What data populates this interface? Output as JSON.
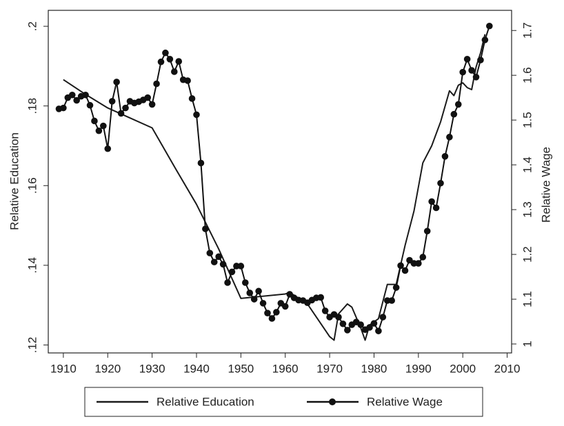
{
  "chart_data": {
    "type": "line",
    "xlabel": null,
    "ylabel": "Relative Education",
    "y2label": "Relative Wage",
    "xlim": [
      1906.6,
      2011
    ],
    "xticks": [
      1910,
      1920,
      1930,
      1940,
      1950,
      1960,
      1970,
      1980,
      1990,
      2000,
      2010
    ],
    "ylim": [
      0.118,
      0.204
    ],
    "yticks": [
      {
        "value": 0.12,
        "label": ".12"
      },
      {
        "value": 0.14,
        "label": ".14"
      },
      {
        "value": 0.16,
        "label": ".16"
      },
      {
        "value": 0.18,
        "label": ".18"
      },
      {
        "value": 0.2,
        "label": ".2"
      }
    ],
    "y2lim": [
      0.98,
      1.745
    ],
    "y2ticks": [
      1,
      1.1,
      1.2,
      1.3,
      1.4,
      1.5,
      1.6,
      1.7
    ],
    "legend": "bottom",
    "series": [
      {
        "name": "Relative Education",
        "color": "#1a1a1a",
        "markers": false,
        "x": [
          1910,
          1915,
          1920,
          1925,
          1930,
          1935,
          1940,
          1945,
          1950,
          1960,
          1961,
          1965,
          1970,
          1971,
          1972,
          1974,
          1975,
          1977,
          1978,
          1979,
          1981,
          1983,
          1985,
          1987,
          1989,
          1991,
          1993,
          1995,
          1997,
          1998,
          1999,
          2000,
          2001,
          2002,
          2003,
          2004,
          2005
        ],
        "values": [
          0.1866,
          0.1829,
          0.1795,
          0.177,
          0.1745,
          0.1648,
          0.1553,
          0.1441,
          0.1317,
          0.1328,
          0.1332,
          0.1303,
          0.1221,
          0.1212,
          0.1278,
          0.1303,
          0.1295,
          0.1243,
          0.1212,
          0.125,
          0.1266,
          0.1352,
          0.1352,
          0.145,
          0.1536,
          0.1657,
          0.17,
          0.176,
          0.1838,
          0.1826,
          0.1852,
          0.1858,
          0.1846,
          0.1841,
          0.1898,
          0.1933,
          0.198
        ]
      },
      {
        "name": "Relative Wage",
        "color": "#111111",
        "markers": true,
        "axis": "y2",
        "x": [
          1909,
          1910,
          1911,
          1912,
          1913,
          1914,
          1915,
          1916,
          1917,
          1918,
          1919,
          1920,
          1921,
          1922,
          1923,
          1924,
          1925,
          1926,
          1927,
          1928,
          1929,
          1930,
          1931,
          1932,
          1933,
          1934,
          1935,
          1936,
          1937,
          1938,
          1939,
          1940,
          1941,
          1942,
          1943,
          1944,
          1945,
          1946,
          1947,
          1948,
          1949,
          1950,
          1951,
          1952,
          1953,
          1954,
          1955,
          1956,
          1957,
          1958,
          1959,
          1960,
          1961,
          1962,
          1963,
          1964,
          1965,
          1966,
          1967,
          1968,
          1969,
          1970,
          1971,
          1972,
          1973,
          1974,
          1975,
          1976,
          1977,
          1978,
          1979,
          1980,
          1981,
          1982,
          1983,
          1984,
          1985,
          1986,
          1987,
          1988,
          1989,
          1990,
          1991,
          1992,
          1993,
          1994,
          1995,
          1996,
          1997,
          1998,
          1999,
          2000,
          2001,
          2002,
          2003,
          2004,
          2005,
          2006
        ],
        "values": [
          1.525,
          1.527,
          1.55,
          1.556,
          1.544,
          1.553,
          1.556,
          1.533,
          1.498,
          1.476,
          1.487,
          1.436,
          1.542,
          1.585,
          1.515,
          1.527,
          1.542,
          1.538,
          1.541,
          1.545,
          1.55,
          1.535,
          1.581,
          1.63,
          1.65,
          1.636,
          1.608,
          1.631,
          1.59,
          1.588,
          1.548,
          1.512,
          1.404,
          1.257,
          1.203,
          1.183,
          1.195,
          1.178,
          1.137,
          1.161,
          1.174,
          1.174,
          1.137,
          1.114,
          1.1,
          1.118,
          1.091,
          1.069,
          1.057,
          1.071,
          1.091,
          1.084,
          1.111,
          1.103,
          1.098,
          1.097,
          1.092,
          1.098,
          1.103,
          1.104,
          1.074,
          1.06,
          1.066,
          1.06,
          1.045,
          1.031,
          1.043,
          1.049,
          1.043,
          1.032,
          1.037,
          1.046,
          1.029,
          1.06,
          1.097,
          1.097,
          1.126,
          1.175,
          1.164,
          1.187,
          1.18,
          1.18,
          1.194,
          1.252,
          1.318,
          1.304,
          1.359,
          1.419,
          1.462,
          1.513,
          1.535,
          1.607,
          1.636,
          1.611,
          1.596,
          1.634,
          1.679,
          1.71
        ]
      }
    ]
  }
}
